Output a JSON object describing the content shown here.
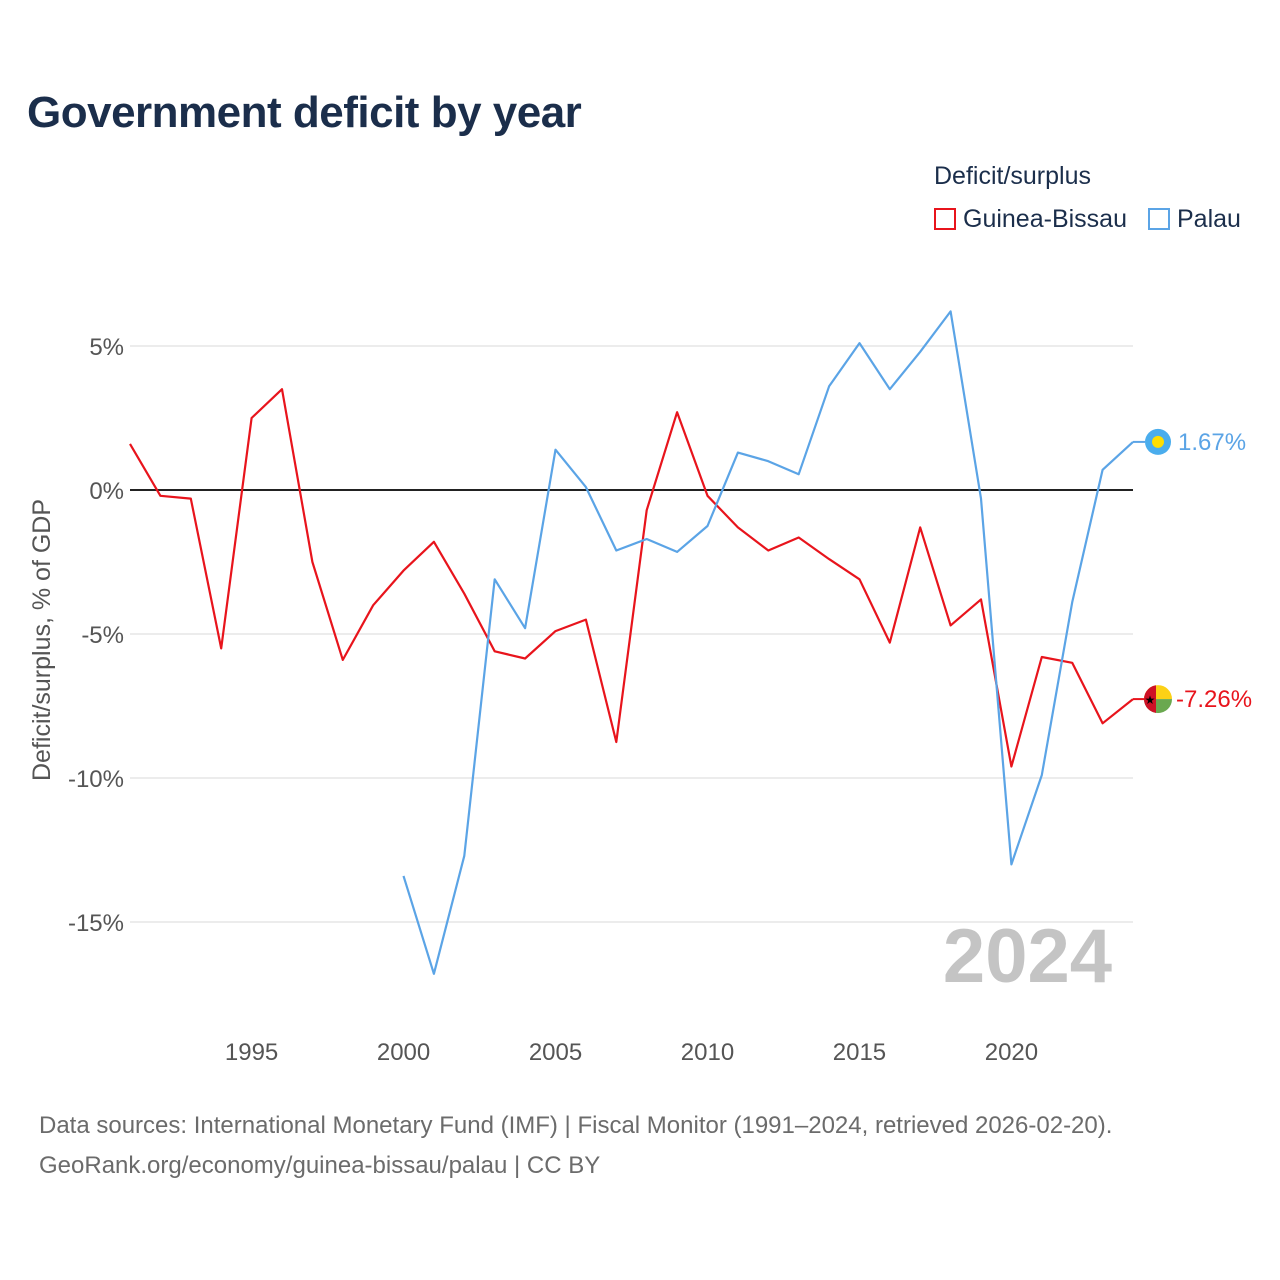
{
  "title": "Government deficit by year",
  "legend": {
    "title": "Deficit/surplus",
    "items": [
      {
        "label": "Guinea-Bissau",
        "color": "#e8141c"
      },
      {
        "label": "Palau",
        "color": "#5ba4e6"
      }
    ]
  },
  "source": {
    "line1": "Data sources: International Monetary Fund (IMF) | Fiscal Monitor (1991–2024, retrieved 2026-02-20).",
    "line2": "GeoRank.org/economy/guinea-bissau/palau | CC BY"
  },
  "chart_data": {
    "type": "line",
    "title": "Government deficit by year",
    "xlabel": "",
    "ylabel": "Deficit/surplus, % of GDP",
    "xlim": [
      1991,
      2024
    ],
    "ylim": [
      -17,
      7.5
    ],
    "x_ticks": [
      1995,
      2000,
      2005,
      2010,
      2015,
      2020
    ],
    "y_ticks": [
      5,
      0,
      -5,
      -10,
      -15
    ],
    "y_tick_labels": [
      "5%",
      "0%",
      "-5%",
      "-10%",
      "-15%"
    ],
    "year_watermark": "2024",
    "grid": true,
    "legend_position": "top-right",
    "series": [
      {
        "name": "Guinea-Bissau",
        "color": "#e8141c",
        "end_label": "-7.26%",
        "points": [
          [
            1991,
            1.6
          ],
          [
            1992,
            -0.2
          ],
          [
            1993,
            -0.3
          ],
          [
            1994,
            -5.5
          ],
          [
            1995,
            2.5
          ],
          [
            1996,
            3.5
          ],
          [
            1997,
            -2.5
          ],
          [
            1998,
            -5.9
          ],
          [
            1999,
            -4.0
          ],
          [
            2000,
            -2.8
          ],
          [
            2001,
            -1.8
          ],
          [
            2002,
            -3.6
          ],
          [
            2003,
            -5.6
          ],
          [
            2004,
            -5.85
          ],
          [
            2005,
            -4.9
          ],
          [
            2006,
            -4.5
          ],
          [
            2007,
            -8.75
          ],
          [
            2008,
            -0.7
          ],
          [
            2009,
            2.7
          ],
          [
            2010,
            -0.2
          ],
          [
            2011,
            -1.3
          ],
          [
            2012,
            -2.1
          ],
          [
            2013,
            -1.65
          ],
          [
            2014,
            -2.4
          ],
          [
            2015,
            -3.1
          ],
          [
            2016,
            -5.3
          ],
          [
            2017,
            -1.3
          ],
          [
            2018,
            -4.7
          ],
          [
            2019,
            -3.8
          ],
          [
            2020,
            -9.6
          ],
          [
            2021,
            -5.8
          ],
          [
            2022,
            -6.0
          ],
          [
            2023,
            -8.1
          ],
          [
            2024,
            -7.26
          ]
        ]
      },
      {
        "name": "Palau",
        "color": "#5ba4e6",
        "end_label": "1.67%",
        "points": [
          [
            2000,
            -13.4
          ],
          [
            2001,
            -16.8
          ],
          [
            2002,
            -12.7
          ],
          [
            2003,
            -3.1
          ],
          [
            2004,
            -4.8
          ],
          [
            2005,
            1.4
          ],
          [
            2006,
            0.1
          ],
          [
            2007,
            -2.1
          ],
          [
            2008,
            -1.7
          ],
          [
            2009,
            -2.15
          ],
          [
            2010,
            -1.25
          ],
          [
            2011,
            1.3
          ],
          [
            2012,
            1.0
          ],
          [
            2013,
            0.55
          ],
          [
            2014,
            3.6
          ],
          [
            2015,
            5.1
          ],
          [
            2016,
            3.5
          ],
          [
            2017,
            4.8
          ],
          [
            2018,
            6.2
          ],
          [
            2019,
            -0.3
          ],
          [
            2020,
            -13.0
          ],
          [
            2021,
            -9.9
          ],
          [
            2022,
            -3.9
          ],
          [
            2023,
            0.7
          ],
          [
            2024,
            1.67
          ]
        ]
      }
    ]
  }
}
